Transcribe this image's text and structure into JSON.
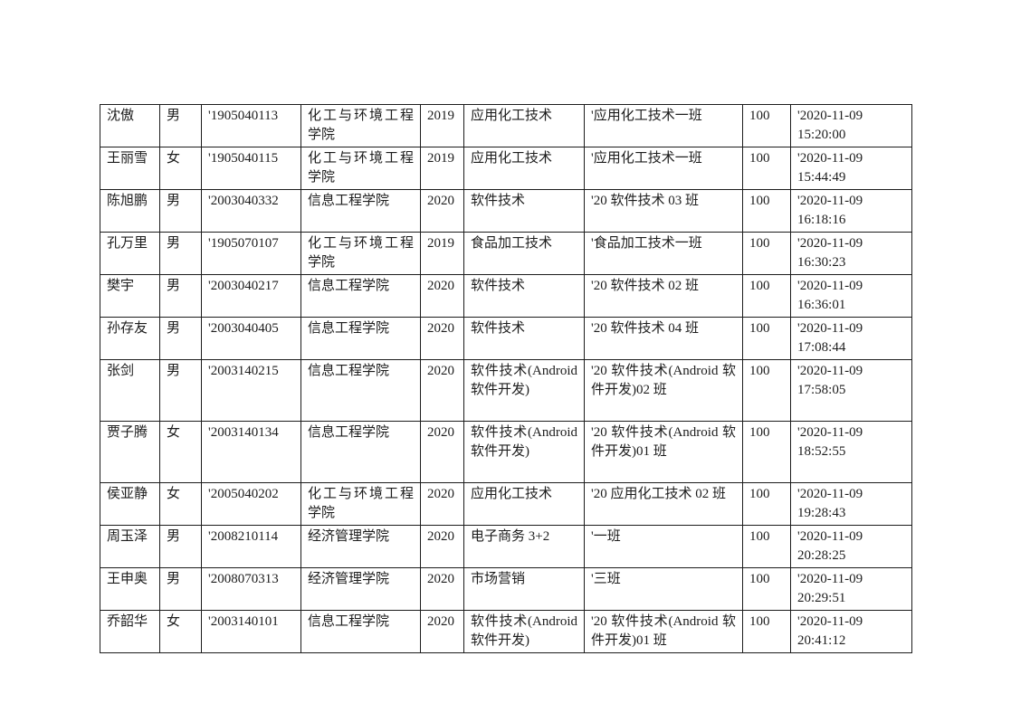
{
  "document": {
    "background": "#ffffff",
    "text_color": "#1c1c1c",
    "border_color": "#1c1c1c"
  },
  "table": {
    "columns": [
      "name",
      "gender",
      "student_id",
      "college",
      "enroll_year",
      "major",
      "class_name",
      "score",
      "submit_time"
    ],
    "rows": [
      [
        "沈傲",
        "男",
        "'1905040113",
        "化工与环境工程学院",
        "2019",
        "应用化工技术",
        "'应用化工技术一班",
        "100",
        "'2020-11-09 15:20:00"
      ],
      [
        "王丽雪",
        "女",
        "'1905040115",
        "化工与环境工程学院",
        "2019",
        "应用化工技术",
        "'应用化工技术一班",
        "100",
        "'2020-11-09 15:44:49"
      ],
      [
        "陈旭鹏",
        "男",
        "'2003040332",
        "信息工程学院",
        "2020",
        "软件技术",
        "'20 软件技术 03 班",
        "100",
        "'2020-11-09 16:18:16"
      ],
      [
        "孔万里",
        "男",
        "'1905070107",
        "化工与环境工程学院",
        "2019",
        "食品加工技术",
        "'食品加工技术一班",
        "100",
        "'2020-11-09 16:30:23"
      ],
      [
        "樊宇",
        "男",
        "'2003040217",
        "信息工程学院",
        "2020",
        "软件技术",
        "'20 软件技术 02 班",
        "100",
        "'2020-11-09 16:36:01"
      ],
      [
        "孙存友",
        "男",
        "'2003040405",
        "信息工程学院",
        "2020",
        "软件技术",
        "'20 软件技术 04 班",
        "100",
        "'2020-11-09 17:08:44"
      ],
      [
        "张剑",
        "男",
        "'2003140215",
        "信息工程学院",
        "2020",
        "软件技术(Android 软件开发)",
        "'20 软件技术(Android 软件开发)02 班",
        "100",
        "'2020-11-09 17:58:05"
      ],
      [
        "贾子腾",
        "女",
        "'2003140134",
        "信息工程学院",
        "2020",
        "软件技术(Android 软件开发)",
        "'20 软件技术(Android 软件开发)01 班",
        "100",
        "'2020-11-09 18:52:55"
      ],
      [
        "侯亚静",
        "女",
        "'2005040202",
        "化工与环境工程学院",
        "2020",
        "应用化工技术",
        "'20 应用化工技术 02 班",
        "100",
        "'2020-11-09 19:28:43"
      ],
      [
        "周玉泽",
        "男",
        "'2008210114",
        "经济管理学院",
        "2020",
        "电子商务 3+2",
        "'一班",
        "100",
        "'2020-11-09 20:28:25"
      ],
      [
        "王申奥",
        "男",
        "'2008070313",
        "经济管理学院",
        "2020",
        "市场营销",
        "'三班",
        "100",
        "'2020-11-09 20:29:51"
      ],
      [
        "乔韶华",
        "女",
        "'2003140101",
        "信息工程学院",
        "2020",
        "软件技术(Android 软件开发)",
        "'20 软件技术(Android 软件开发)01 班",
        "100",
        "'2020-11-09 20:41:12"
      ]
    ]
  }
}
